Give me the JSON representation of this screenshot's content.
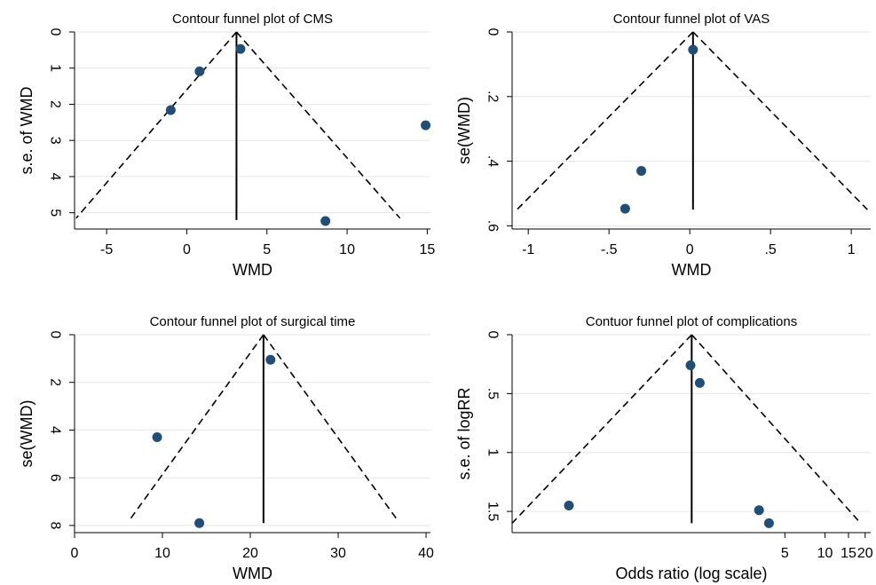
{
  "chart_data": [
    {
      "type": "scatter",
      "title": "Contour funnel plot of CMS",
      "xlabel": "WMD",
      "ylabel": "s.e. of WMD",
      "xlim": [
        -7,
        15.2
      ],
      "ylim": [
        5.45,
        0
      ],
      "y_reversed": true,
      "x_ticks": [
        -5,
        0,
        5,
        10,
        15
      ],
      "x_tick_labels": [
        "-5",
        "0",
        "5",
        "10",
        "15"
      ],
      "y_ticks": [
        0,
        1,
        2,
        3,
        4,
        5
      ],
      "y_tick_labels": [
        "0",
        "1",
        "2",
        "3",
        "4",
        "5"
      ],
      "grid": true,
      "pooled_estimate": 3.1,
      "pooled_line_se_max": 5.2,
      "funnel_left": [
        [
          3.1,
          0
        ],
        [
          -6.9,
          5.15
        ]
      ],
      "funnel_right": [
        [
          3.1,
          0
        ],
        [
          13.3,
          5.15
        ]
      ],
      "points": [
        {
          "x": 3.35,
          "y": 0.47
        },
        {
          "x": 0.8,
          "y": 1.09
        },
        {
          "x": -1.0,
          "y": 2.16
        },
        {
          "x": 14.9,
          "y": 2.58
        },
        {
          "x": 8.65,
          "y": 5.23
        }
      ]
    },
    {
      "type": "scatter",
      "title": "Contour funnel plot of VAS",
      "xlabel": "WMD",
      "ylabel": "se(WMD)",
      "xlim": [
        -1.1,
        1.12
      ],
      "ylim": [
        0.61,
        0
      ],
      "y_reversed": true,
      "x_ticks": [
        -1,
        -0.5,
        0,
        0.5,
        1
      ],
      "x_tick_labels": [
        "-1",
        "-.5",
        "0",
        ".5",
        "1"
      ],
      "y_ticks": [
        0,
        0.2,
        0.4,
        0.6
      ],
      "y_tick_labels": [
        "0",
        ".2",
        ".4",
        ".6"
      ],
      "grid": true,
      "pooled_estimate": 0.02,
      "pooled_line_se_max": 0.55,
      "funnel_left": [
        [
          0.02,
          0
        ],
        [
          -1.07,
          0.55
        ]
      ],
      "funnel_right": [
        [
          0.02,
          0
        ],
        [
          1.1,
          0.55
        ]
      ],
      "points": [
        {
          "x": 0.02,
          "y": 0.055
        },
        {
          "x": -0.3,
          "y": 0.43
        },
        {
          "x": -0.4,
          "y": 0.547
        }
      ]
    },
    {
      "type": "scatter",
      "title": "Contour funnel plot of surgical time",
      "xlabel": "WMD",
      "ylabel": "se(WMD)",
      "xlim": [
        0,
        40.5
      ],
      "ylim": [
        8.3,
        0
      ],
      "y_reversed": true,
      "x_ticks": [
        0,
        10,
        20,
        30,
        40
      ],
      "x_tick_labels": [
        "0",
        "10",
        "20",
        "30",
        "40"
      ],
      "y_ticks": [
        0,
        2,
        4,
        6,
        8
      ],
      "y_tick_labels": [
        "0",
        "2",
        "4",
        "6",
        "8"
      ],
      "grid": true,
      "pooled_estimate": 21.5,
      "pooled_line_se_max": 7.9,
      "funnel_left": [
        [
          21.5,
          0
        ],
        [
          6.4,
          7.7
        ]
      ],
      "funnel_right": [
        [
          21.5,
          0
        ],
        [
          36.6,
          7.7
        ]
      ],
      "points": [
        {
          "x": 22.3,
          "y": 1.05
        },
        {
          "x": 9.4,
          "y": 4.3
        },
        {
          "x": 14.2,
          "y": 7.9
        }
      ]
    },
    {
      "type": "scatter",
      "title": "Contuor funnel plot of complications",
      "xlabel": "Odds ratio (log scale)",
      "ylabel": "s.e. of logRR",
      "x_scale": "log",
      "xlim": [
        0.045,
        22
      ],
      "ylim": [
        1.68,
        0
      ],
      "y_reversed": true,
      "x_ticks": [
        5,
        10,
        15,
        20
      ],
      "x_tick_labels": [
        "5",
        "10",
        "15",
        "20"
      ],
      "y_ticks": [
        0,
        0.5,
        1,
        1.5
      ],
      "y_tick_labels": [
        "0",
        ".5",
        "1",
        "1.5"
      ],
      "grid": true,
      "pooled_estimate": 1.0,
      "pooled_line_se_max": 1.6,
      "funnel_left": [
        [
          1.0,
          0
        ],
        [
          0.045,
          1.6
        ]
      ],
      "funnel_right": [
        [
          1.0,
          0
        ],
        [
          18.5,
          1.6
        ]
      ],
      "points": [
        {
          "x": 0.98,
          "y": 0.26
        },
        {
          "x": 1.15,
          "y": 0.41
        },
        {
          "x": 0.12,
          "y": 1.45
        },
        {
          "x": 3.2,
          "y": 1.49
        },
        {
          "x": 3.8,
          "y": 1.6
        }
      ]
    }
  ]
}
